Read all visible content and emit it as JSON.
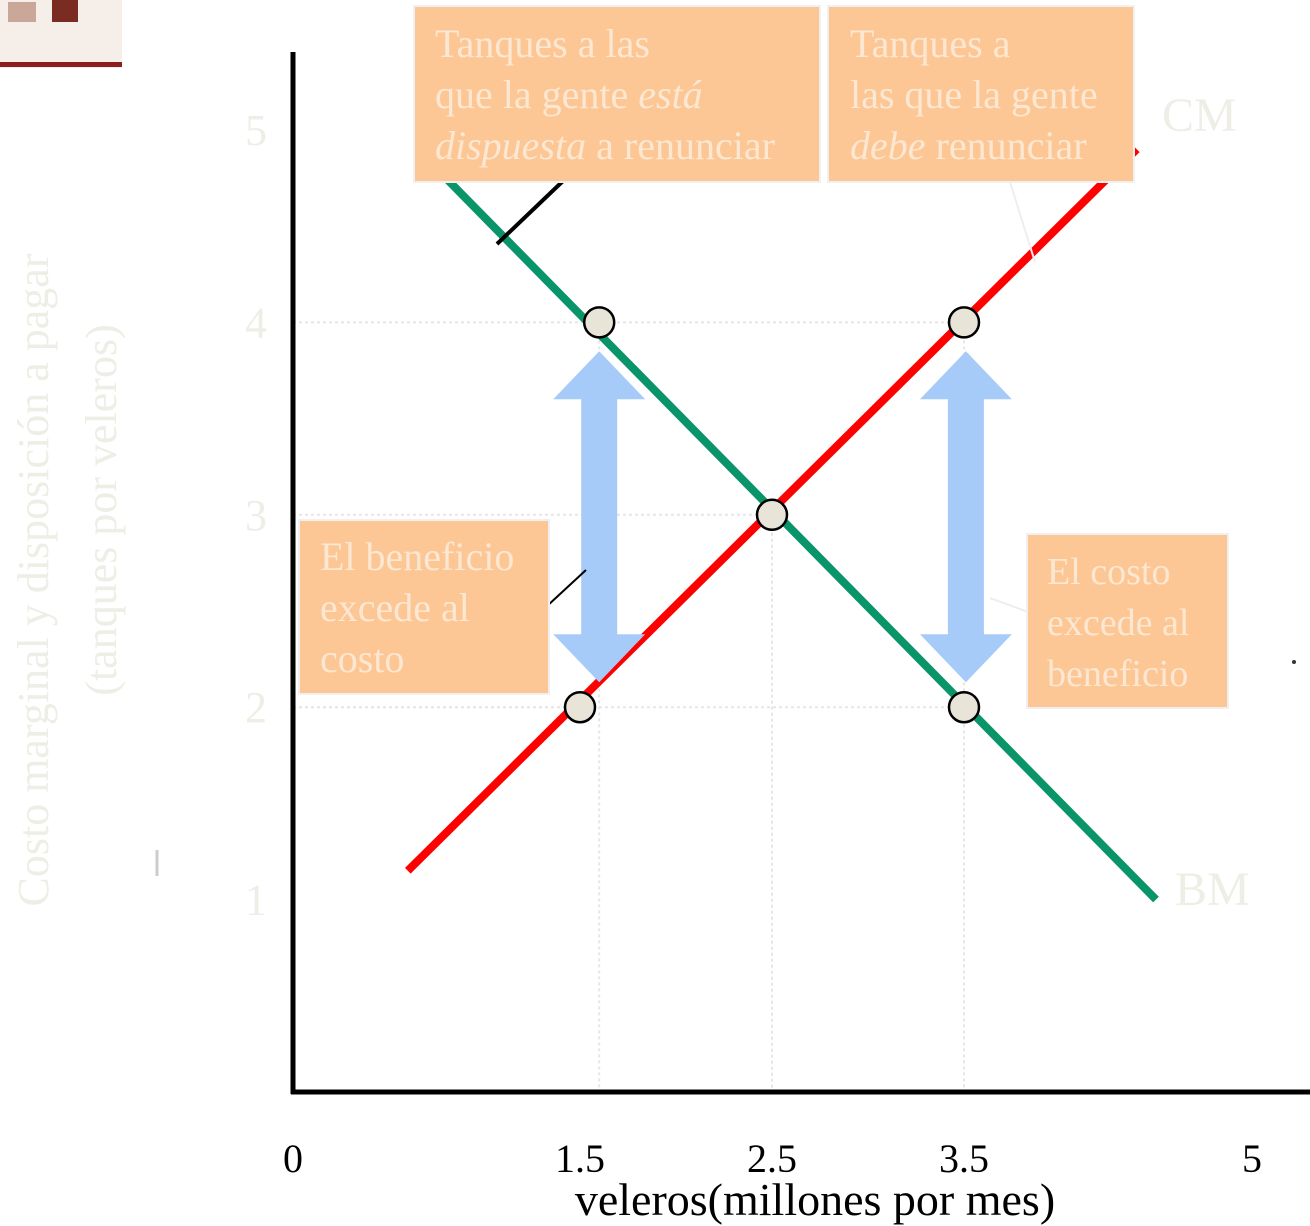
{
  "chart_data": {
    "type": "line",
    "xlabel": "veleros(millones por mes)",
    "ylabel": [
      "Costo marginal y disposición a pagar",
      "(tanques por veleros)"
    ],
    "x_ticks": [
      {
        "value": 0,
        "label": "0"
      },
      {
        "value": 1.5,
        "label": "1.5"
      },
      {
        "value": 2.5,
        "label": "2.5"
      },
      {
        "value": 3.5,
        "label": "3.5"
      },
      {
        "value": 5,
        "label": "5"
      }
    ],
    "y_ticks": [
      {
        "value": 1,
        "label": "1"
      },
      {
        "value": 2,
        "label": "2"
      },
      {
        "value": 3,
        "label": "3"
      },
      {
        "value": 4,
        "label": "4"
      },
      {
        "value": 5,
        "label": "5"
      }
    ],
    "series": [
      {
        "name": "CM",
        "color": "#ff0000",
        "x": [
          0.6,
          4.4
        ],
        "y": [
          1.15,
          4.9
        ]
      },
      {
        "name": "BM",
        "color": "#0a9469",
        "x": [
          0.7,
          4.5
        ],
        "y": [
          4.85,
          1.0
        ]
      }
    ],
    "points": [
      {
        "x": 1.6,
        "y": 4.0
      },
      {
        "x": 3.5,
        "y": 4.0
      },
      {
        "x": 2.5,
        "y": 3.0
      },
      {
        "x": 1.5,
        "y": 2.0
      },
      {
        "x": 3.5,
        "y": 2.0
      }
    ],
    "annotations": {
      "box1": {
        "lines": [
          [
            {
              "text": "Tanques a las",
              "italic": false
            }
          ],
          [
            {
              "text": "que la gente ",
              "italic": false
            },
            {
              "text": "está",
              "italic": true
            }
          ],
          [
            {
              "text": "dispuesta",
              "italic": true
            },
            {
              "text": " a renunciar",
              "italic": false
            }
          ]
        ]
      },
      "box2": {
        "lines": [
          [
            {
              "text": "Tanques a",
              "italic": false
            }
          ],
          [
            {
              "text": "las que la gente",
              "italic": false
            }
          ],
          [
            {
              "text": "debe",
              "italic": true
            },
            {
              "text": " renunciar",
              "italic": false
            }
          ]
        ]
      },
      "box3": {
        "lines": [
          [
            {
              "text": "El beneficio",
              "italic": false
            }
          ],
          [
            {
              "text": "excede al",
              "italic": false
            }
          ],
          [
            {
              "text": "costo",
              "italic": false
            }
          ]
        ]
      },
      "box4": {
        "lines": [
          [
            {
              "text": "El costo",
              "italic": false
            }
          ],
          [
            {
              "text": "excede al",
              "italic": false
            }
          ],
          [
            {
              "text": "beneficio",
              "italic": false
            }
          ]
        ]
      }
    },
    "colors": {
      "axis": "#000000",
      "box_fill": "#fcc794",
      "box_text": "#fce7d2",
      "arrow": "#a6cbf8",
      "marker_fill": "#e8e4d8"
    },
    "grid": false
  }
}
